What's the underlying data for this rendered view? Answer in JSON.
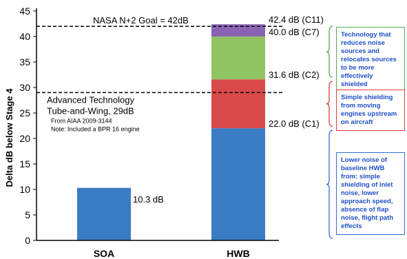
{
  "chart_data": {
    "type": "bar",
    "title": "",
    "xlabel": "",
    "ylabel": "Delta dB below Stage 4",
    "ylim": [
      0,
      45
    ],
    "yticks": [
      0,
      5,
      10,
      15,
      20,
      25,
      30,
      35,
      40,
      45
    ],
    "grid": false,
    "categories": [
      "SOA",
      "HWB"
    ],
    "soa": {
      "value": 10.3,
      "label": "10.3 dB",
      "color": "#3a7dc4"
    },
    "hwb_segments": [
      {
        "from": 0,
        "to": 22.0,
        "label": "22.0 dB (C1)",
        "color": "#3a7dc4"
      },
      {
        "from": 22.0,
        "to": 31.6,
        "label": "31.6 dB (C2)",
        "color": "#d94a4a"
      },
      {
        "from": 31.6,
        "to": 40.0,
        "label": "40.0 dB (C7)",
        "color": "#8fc460"
      },
      {
        "from": 40.0,
        "to": 42.4,
        "label": "42.4 dB (C11)",
        "color": "#8a63b5"
      }
    ],
    "reference_lines": [
      {
        "value": 42,
        "label": "NASA N+2 Goal = 42dB"
      },
      {
        "value": 29,
        "label_lines": [
          "Advanced Technology",
          "Tube-and-Wing, 29dB"
        ],
        "note_lines": [
          "From AIAA 2009-3144",
          "Note: Included a BPR 16 engine"
        ]
      }
    ]
  },
  "annotations": [
    {
      "text": "Technology that reduces noise sources and relocates sources to be more effectively shielded",
      "text_color": "#1f4fc8",
      "bracket_color": "#4caf50",
      "bracket_from": 31.6,
      "bracket_to": 42.4
    },
    {
      "text": "Simple shielding from moving engines upstream on aircraft",
      "text_color": "#1f4fc8",
      "bracket_color": "#e23b3b",
      "bracket_from": 22.0,
      "bracket_to": 31.6
    },
    {
      "text": "Lower noise of baseline HWB from: simple shielding of inlet noise, lower approach speed, absence of flap noise, flight path effects",
      "text_color": "#1f4fc8",
      "bracket_color": "#2f6fd6",
      "bracket_from": 0,
      "bracket_to": 22.0
    }
  ]
}
